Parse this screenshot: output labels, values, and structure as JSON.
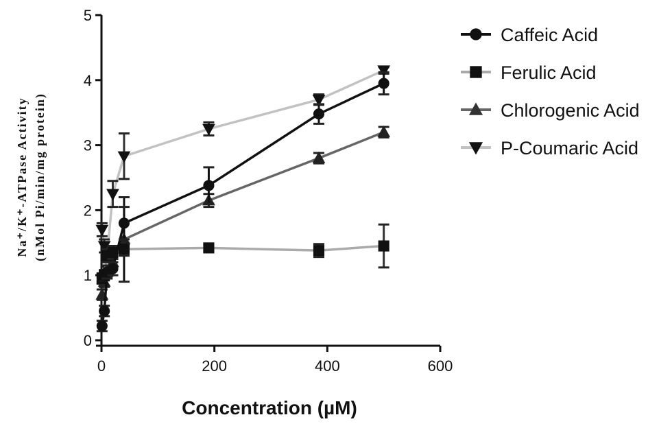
{
  "chart_data": {
    "type": "line",
    "xlabel": "Concentration (µM)",
    "ylabel_line1": "Na⁺/K⁺-ATPase Activity",
    "ylabel_line2": "(nMol Pi/min/mg protein)",
    "xlim": [
      0,
      600
    ],
    "ylim": [
      0,
      5
    ],
    "xticks": [
      0,
      200,
      400,
      600
    ],
    "yticks": [
      0,
      1,
      2,
      3,
      4,
      5
    ],
    "grid": false,
    "legend_position": "right",
    "series": [
      {
        "name": "Caffeic Acid",
        "marker": "circle",
        "color": "#111111",
        "x": [
          1,
          5,
          10,
          20,
          40,
          190,
          385,
          500
        ],
        "y": [
          0.22,
          0.45,
          1.05,
          1.1,
          1.8,
          2.38,
          3.48,
          3.95
        ],
        "err": [
          0.08,
          0.08,
          0.1,
          0.1,
          0.25,
          0.28,
          0.15,
          0.17
        ]
      },
      {
        "name": "Ferulic Acid",
        "marker": "square",
        "color": "#aaaaaa",
        "x": [
          1,
          5,
          10,
          20,
          40,
          190,
          385,
          500
        ],
        "y": [
          0.95,
          1.0,
          1.3,
          1.35,
          1.4,
          1.42,
          1.38,
          1.45
        ],
        "err": [
          0.08,
          0.08,
          0.1,
          0.1,
          0.1,
          0.05,
          0.1,
          0.33
        ]
      },
      {
        "name": "Chlorogenic Acid",
        "marker": "triangle-up",
        "color": "#666666",
        "x": [
          1,
          5,
          10,
          20,
          40,
          190,
          385,
          500
        ],
        "y": [
          0.7,
          0.9,
          1.05,
          1.2,
          1.55,
          2.15,
          2.8,
          3.2
        ],
        "err": [
          0.08,
          0.08,
          0.08,
          0.1,
          0.65,
          0.1,
          0.08,
          0.08
        ]
      },
      {
        "name": "P-Coumaric Acid",
        "marker": "triangle-down",
        "color": "#c2c2c2",
        "x": [
          1,
          5,
          10,
          20,
          40,
          190,
          385,
          500
        ],
        "y": [
          1.7,
          1.45,
          1.3,
          2.25,
          2.83,
          3.25,
          3.7,
          4.15
        ],
        "err": [
          0.1,
          0.1,
          0.1,
          0.2,
          0.35,
          0.1,
          0.08,
          0.05
        ]
      }
    ]
  }
}
